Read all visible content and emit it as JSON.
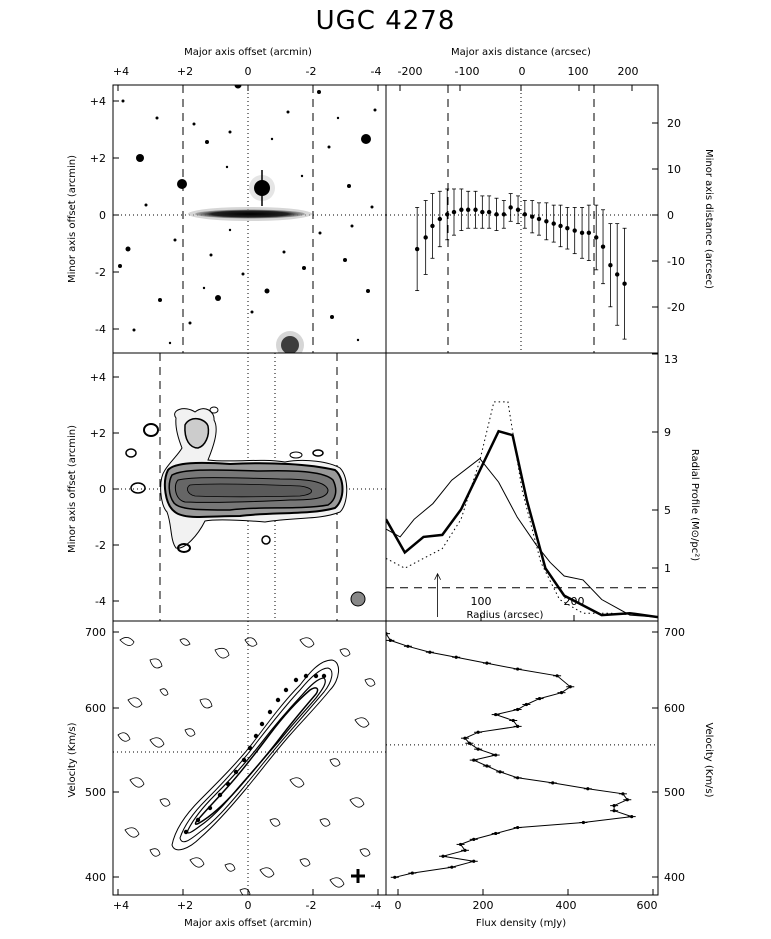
{
  "title": "UGC 4278",
  "panels": {
    "optical": {
      "top_axis_label": "Major axis offset (arcmin)",
      "top_ticks": [
        "+4",
        "+2",
        "0",
        "-2",
        "-4"
      ],
      "left_axis_label": "Minor axis offset (arcmin)",
      "left_ticks": [
        "+4",
        "+2",
        "0",
        "-2",
        "-4"
      ]
    },
    "centroid": {
      "top_axis_label": "Major axis distance (arcsec)",
      "top_ticks": [
        "-200",
        "-100",
        "0",
        "100",
        "200"
      ],
      "right_axis_label": "Minor axis distance (arcsec)",
      "right_ticks": [
        "20",
        "10",
        "0",
        "-10",
        "-20"
      ]
    },
    "moment0": {
      "left_axis_label": "Minor axis offset (arcmin)",
      "left_ticks": [
        "+4",
        "+2",
        "0",
        "-2",
        "-4"
      ]
    },
    "radial": {
      "bottom_axis_label": "Radius (arcsec)",
      "bottom_ticks": [
        "100",
        "200"
      ],
      "right_axis_label": "Radial Profile (M⊙/pc²)",
      "right_ticks": [
        "13",
        "9",
        "5",
        "1"
      ]
    },
    "pv": {
      "bottom_axis_label": "Major axis offset (arcmin)",
      "bottom_ticks": [
        "+4",
        "+2",
        "0",
        "-2",
        "-4"
      ],
      "left_axis_label": "Velocity (Km/s)",
      "left_ticks": [
        "700",
        "600",
        "500",
        "400"
      ]
    },
    "spectrum": {
      "bottom_axis_label": "Flux density (mJy)",
      "bottom_ticks": [
        "0",
        "200",
        "400",
        "600"
      ],
      "right_axis_label": "Velocity (Km/s)",
      "right_ticks": [
        "700",
        "600",
        "500",
        "400"
      ]
    }
  },
  "chart_data": [
    {
      "type": "scatter",
      "panel": "centroid",
      "xlabel": "Major axis distance (arcsec)",
      "ylabel": "Minor axis distance (arcsec)",
      "xlim": [
        -230,
        250
      ],
      "ylim": [
        -29,
        29
      ],
      "x": [
        -175,
        -160,
        -148,
        -135,
        -122,
        -110,
        -97,
        -85,
        -72,
        -60,
        -48,
        -35,
        -22,
        -10,
        3,
        15,
        28,
        40,
        53,
        66,
        78,
        90,
        103,
        116,
        128,
        141,
        153,
        166,
        178,
        191
      ],
      "y": [
        -6.5,
        -4,
        -1.5,
        0,
        1,
        1.5,
        2,
        2,
        2,
        1.5,
        1.5,
        1,
        1,
        2.5,
        2,
        1,
        0.5,
        0,
        -0.5,
        -1,
        -1.5,
        -2,
        -2.5,
        -3,
        -3,
        -4,
        -6,
        -10,
        -12,
        -14
      ],
      "yerr": [
        9,
        8,
        7,
        6,
        5.5,
        5,
        4.5,
        4,
        4,
        3.5,
        3.5,
        3.5,
        3,
        3,
        3,
        3,
        3.5,
        3.5,
        4,
        4,
        4.5,
        4.5,
        5,
        5.5,
        6,
        7,
        8,
        9,
        11,
        12
      ]
    },
    {
      "type": "line",
      "panel": "radial",
      "xlabel": "Radius (arcsec)",
      "ylabel": "Radial Profile (M⊙/pc²)",
      "xlim": [
        0,
        290
      ],
      "ylim": [
        -0.7,
        13
      ],
      "series": [
        {
          "style": "thick",
          "x": [
            0,
            20,
            40,
            60,
            80,
            100,
            120,
            135,
            150,
            170,
            190,
            210,
            230,
            260,
            290
          ],
          "y": [
            4.5,
            2.8,
            3.6,
            3.7,
            5,
            7,
            9,
            8.8,
            5.5,
            2,
            0.6,
            0.1,
            -0.4,
            -0.3,
            -0.5
          ]
        },
        {
          "style": "thin",
          "x": [
            0,
            15,
            30,
            50,
            70,
            100,
            120,
            140,
            160,
            175,
            190,
            210,
            230,
            260,
            290
          ],
          "y": [
            4,
            3.6,
            4.5,
            5.3,
            6.5,
            7.6,
            6.4,
            4.6,
            3.2,
            2.3,
            1.6,
            1.4,
            0.4,
            -0.4,
            -0.5
          ]
        },
        {
          "style": "dotted",
          "x": [
            0,
            20,
            40,
            60,
            80,
            100,
            115,
            130,
            145,
            165,
            185,
            210,
            240,
            290
          ],
          "y": [
            2.5,
            2,
            2.5,
            3,
            4.5,
            7.5,
            10.5,
            10.5,
            6,
            2.3,
            0.4,
            -0.3,
            -0.3,
            -0.5
          ]
        }
      ],
      "hline": 1,
      "arrow_x": 55
    },
    {
      "type": "line",
      "panel": "spectrum",
      "xlabel": "Flux density (mJy)",
      "ylabel": "Velocity (Km/s)",
      "xlim": [
        0,
        620
      ],
      "ylim": [
        380,
        705
      ],
      "systemic_velocity": 558,
      "flux": [
        0,
        10,
        50,
        100,
        160,
        230,
        300,
        390,
        420,
        400,
        350,
        320,
        300,
        250,
        290,
        300,
        210,
        180,
        190,
        210,
        250,
        200,
        230,
        260,
        300,
        380,
        460,
        540,
        550,
        520,
        520,
        560,
        450,
        300,
        250,
        200,
        170,
        180,
        130,
        200,
        150,
        60,
        20
      ],
      "velocity": [
        690,
        682,
        675,
        668,
        662,
        655,
        648,
        640,
        627,
        620,
        613,
        606,
        600,
        594,
        587,
        580,
        573,
        566,
        560,
        553,
        546,
        540,
        533,
        526,
        519,
        513,
        506,
        500,
        493,
        486,
        480,
        473,
        466,
        460,
        453,
        446,
        440,
        433,
        426,
        420,
        413,
        406,
        401
      ]
    }
  ]
}
